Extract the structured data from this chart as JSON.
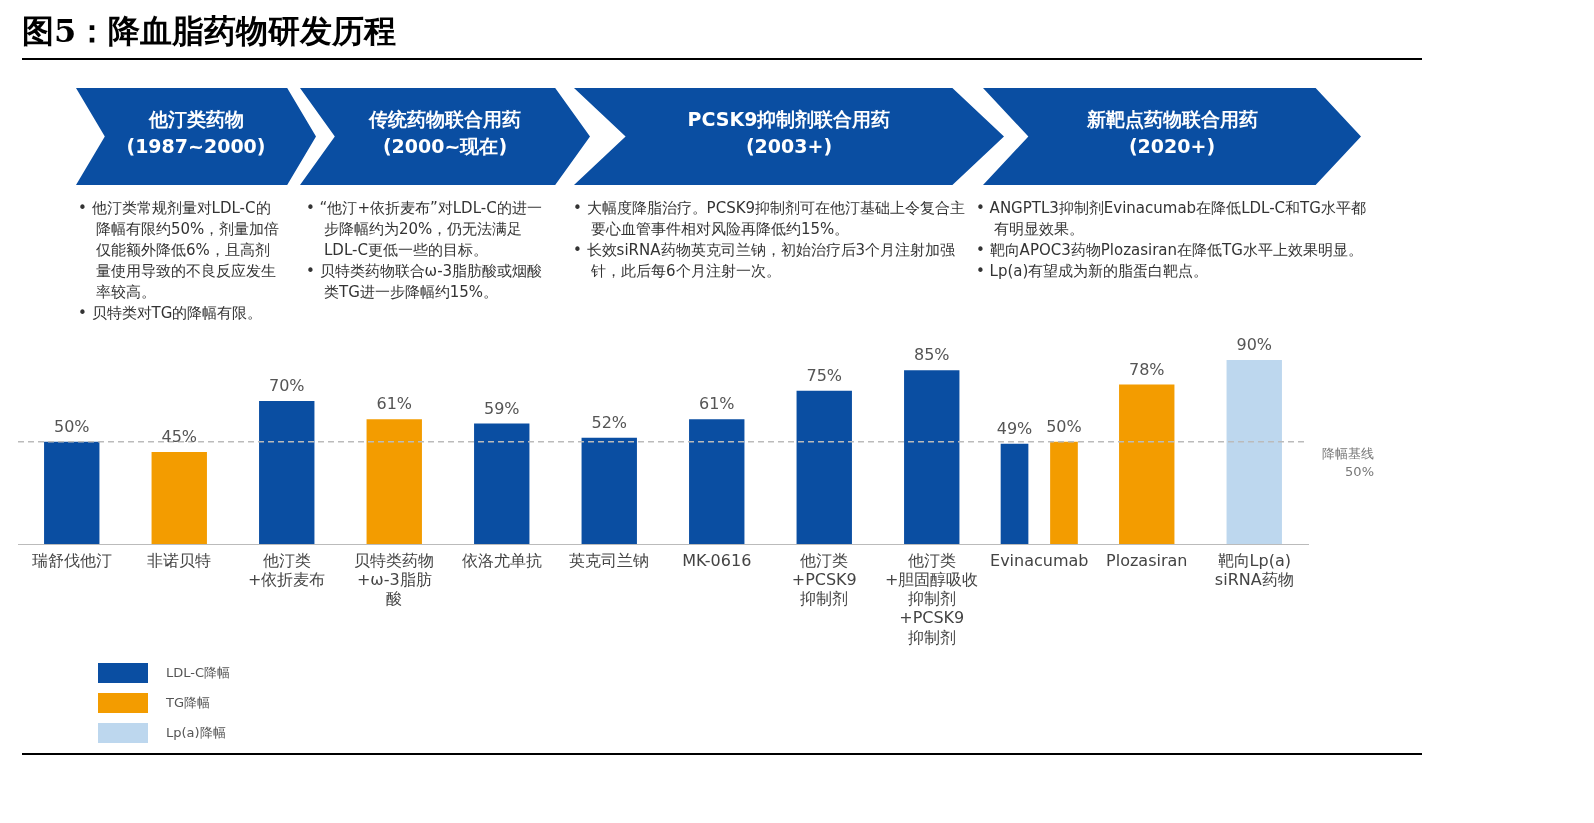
{
  "chart_data": {
    "type": "bar",
    "title": "图5：降血脂药物研发历程",
    "categories": [
      "瑞舒伐他汀",
      "非诺贝特",
      "他汀类+依折麦布",
      "贝特类药物+ω-3脂肪酸",
      "依洛尤单抗",
      "英克司兰钠",
      "MK-0616",
      "他汀类+PCSK9抑制剂",
      "他汀类+胆固醇吸收抑制剂+PCSK9抑制剂",
      "Evinacumab",
      "Plozasiran",
      "靶向Lp(a) siRNA药物"
    ],
    "series": [
      {
        "name": "LDL-C降幅",
        "color": "#0a4ea2",
        "values": [
          50,
          null,
          70,
          null,
          59,
          52,
          61,
          75,
          85,
          49,
          null,
          null
        ],
        "value_labels": [
          "50%",
          null,
          "70%",
          null,
          "59%",
          "52%",
          "61%",
          "75%",
          "85%",
          "49%",
          null,
          null
        ]
      },
      {
        "name": "TG降幅",
        "color": "#f39c00",
        "values": [
          null,
          45,
          null,
          61,
          null,
          null,
          null,
          null,
          null,
          50,
          78,
          null
        ],
        "value_labels": [
          null,
          "45%",
          null,
          "61%",
          null,
          null,
          null,
          null,
          null,
          "50%",
          "78%",
          null
        ]
      },
      {
        "name": "Lp(a)降幅",
        "color": "#bdd7ee",
        "values": [
          null,
          null,
          null,
          null,
          null,
          null,
          null,
          null,
          null,
          null,
          null,
          90
        ],
        "value_labels": [
          null,
          null,
          null,
          null,
          null,
          null,
          null,
          null,
          null,
          null,
          null,
          "90%"
        ]
      }
    ],
    "ref_lines": [
      {
        "axis": "y",
        "value": 50,
        "label": "降幅基线 50%",
        "color": "#bbbbbb",
        "line_style": "dashed"
      }
    ],
    "annotations": [
      "他汀类药物\n(1987~2000)",
      "传统药物联合用药\n(2000~现在)",
      "PCSK9抑制剂联合用药\n(2003+)",
      "新靶点药物联合用药\n(2020+)",
      "• 他汀类常规剂量对LDL-C的降幅有限约50%，剂量加倍仅能额外降低6%，且高剂量使用导致的不良反应发生率较高。",
      "• 贝特类对TG的降幅有限。",
      "• “他汀+依折麦布”对LDL-C的进一步降幅约为20%，仍无法满足LDL-C更低一些的目标。",
      "• 贝特类药物联合ω-3脂肪酸或烟酸类TG进一步降幅约15%。",
      "• 大幅度降脂治疗。PCSK9抑制剂可在他汀基础上令复合主要心血管事件相对风险再降低约15%。",
      "• 长效siRNA药物英克司兰钠，初始治疗后3个月注射加强针，此后每6个月注射一次。",
      "• ANGPTL3抑制剂Evinacumab在降低LDL-C和TG水平都有明显效果。",
      "• 靶向APOC3药物Plozasiran在降低TG水平上效果明显。",
      "• Lp(a)有望成为新的脂蛋白靶点。"
    ],
    "tick_labels": "x",
    "grid": false,
    "legend": "bottom left"
  }
}
